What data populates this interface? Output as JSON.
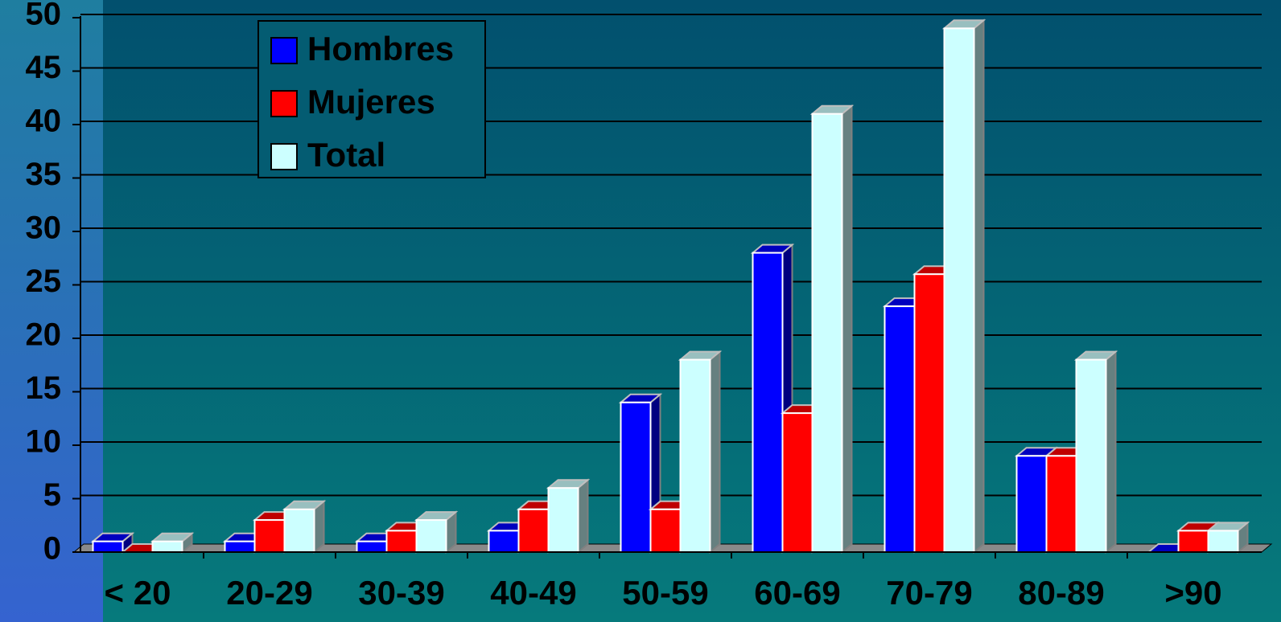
{
  "chart_data": {
    "type": "bar3d",
    "categories": [
      "< 20",
      "20-29",
      "30-39",
      "40-49",
      "50-59",
      "60-69",
      "70-79",
      "80-89",
      ">90"
    ],
    "series": [
      {
        "name": "Hombres",
        "color": "#0000ff",
        "values": [
          1,
          1,
          1,
          2,
          14,
          28,
          23,
          9,
          0
        ]
      },
      {
        "name": "Mujeres",
        "color": "#ff0000",
        "values": [
          0,
          3,
          2,
          4,
          4,
          13,
          26,
          9,
          2
        ]
      },
      {
        "name": "Total",
        "color": "#ccffff",
        "values": [
          1,
          4,
          3,
          6,
          18,
          41,
          49,
          18,
          2
        ]
      }
    ],
    "ylim": [
      0,
      50
    ],
    "yticks": [
      0,
      5,
      10,
      15,
      20,
      25,
      30,
      35,
      40,
      45,
      50
    ],
    "grid": true,
    "legend": "top-left"
  }
}
